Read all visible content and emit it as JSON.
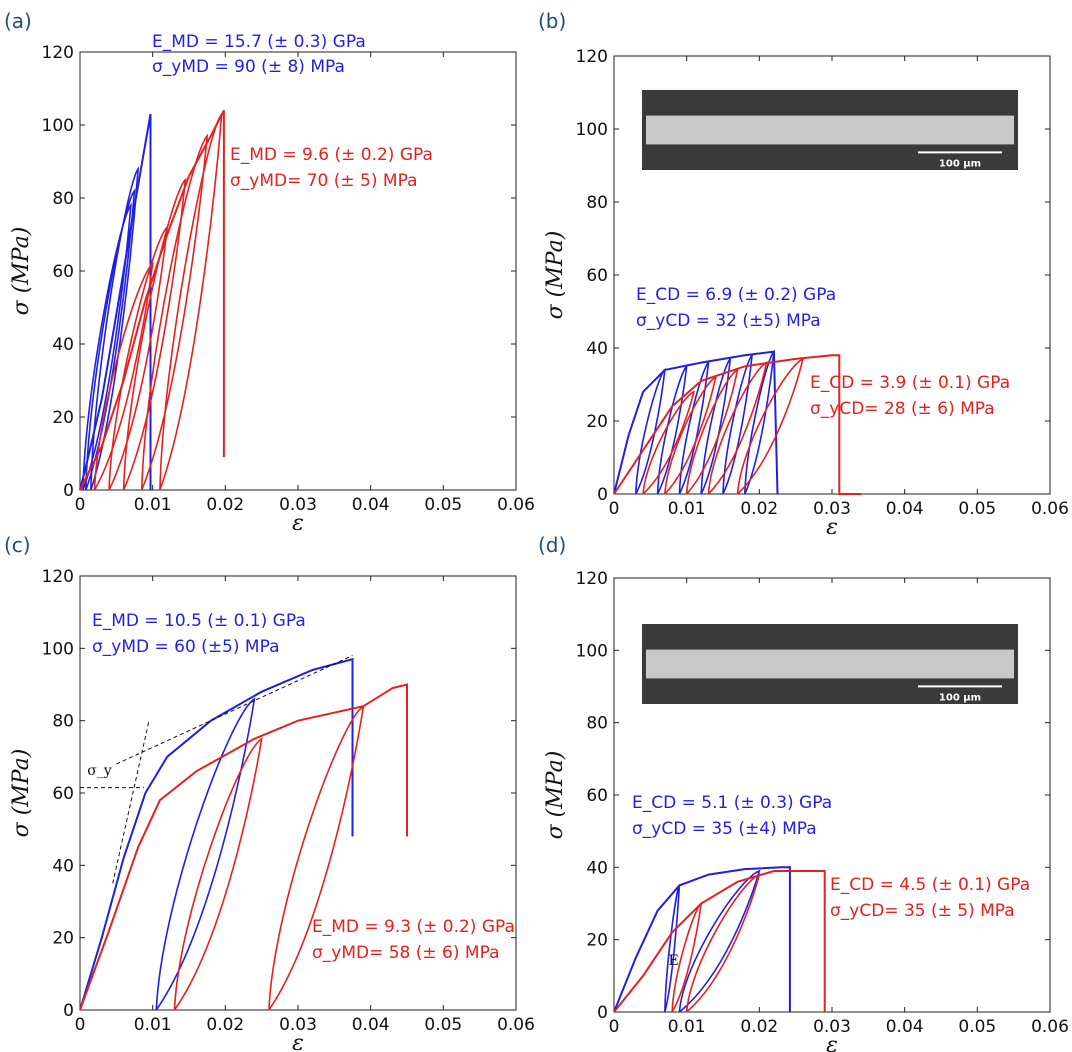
{
  "colors": {
    "blue": "#1f1fe6",
    "red": "#e6201f",
    "label": "#1f4e79"
  },
  "chart_data": [
    {
      "id": "a",
      "panel_label": "(a)",
      "type": "line",
      "xlabel": "ε",
      "ylabel": "σ (MPa)",
      "xlim": [
        0,
        0.06
      ],
      "ylim": [
        0,
        120
      ],
      "xticks": [
        "0",
        "0.01",
        "0.02",
        "0.03",
        "0.04",
        "0.05",
        "0.06"
      ],
      "yticks": [
        "0",
        "20",
        "40",
        "60",
        "80",
        "100",
        "120"
      ],
      "annotations": [
        {
          "text": "E_MD = 15.7 (± 0.3) GPa",
          "color": "blue"
        },
        {
          "text": "σ_yMD = 90 (± 8) MPa",
          "color": "blue"
        },
        {
          "text": "E_MD = 9.6 (± 0.2) GPa",
          "color": "red"
        },
        {
          "text": "σ_yMD= 70 (± 5) MPa",
          "color": "red"
        }
      ],
      "series": [
        {
          "color": "blue",
          "points": [
            [
              0,
              0
            ],
            [
              0.001,
              8
            ],
            [
              0.003,
              25
            ],
            [
              0.005,
              48
            ],
            [
              0.007,
              72
            ],
            [
              0.009,
              95
            ],
            [
              0.0097,
              103
            ],
            [
              0.0097,
              0
            ]
          ],
          "cycles": [
            [
              [
                0.0015,
                0
              ],
              [
                0.008,
                88
              ]
            ],
            [
              [
                0.0008,
                0
              ],
              [
                0.0075,
                82
              ]
            ],
            [
              [
                0.0004,
                0
              ],
              [
                0.007,
                78
              ]
            ]
          ]
        },
        {
          "color": "red",
          "points": [
            [
              0,
              0
            ],
            [
              0.003,
              12
            ],
            [
              0.006,
              30
            ],
            [
              0.009,
              52
            ],
            [
              0.012,
              70
            ],
            [
              0.015,
              86
            ],
            [
              0.018,
              97
            ],
            [
              0.0198,
              104
            ],
            [
              0.0198,
              9
            ]
          ],
          "cycles": [
            [
              [
                0.002,
                0
              ],
              [
                0.01,
                62
              ]
            ],
            [
              [
                0.004,
                0
              ],
              [
                0.012,
                72
              ]
            ],
            [
              [
                0.006,
                0
              ],
              [
                0.0145,
                85
              ]
            ],
            [
              [
                0.0085,
                0
              ],
              [
                0.0175,
                97
              ]
            ],
            [
              [
                0.011,
                0
              ],
              [
                0.0195,
                103
              ]
            ]
          ]
        }
      ]
    },
    {
      "id": "b",
      "panel_label": "(b)",
      "type": "line",
      "xlabel": "ε",
      "ylabel": "σ (MPa)",
      "xlim": [
        0,
        0.06
      ],
      "ylim": [
        0,
        120
      ],
      "xticks": [
        "0",
        "0.01",
        "0.02",
        "0.03",
        "0.04",
        "0.05",
        "0.06"
      ],
      "yticks": [
        "0",
        "20",
        "40",
        "60",
        "80",
        "100",
        "120"
      ],
      "inset": {
        "scale_bar": "100 µm"
      },
      "annotations": [
        {
          "text": "E_CD = 6.9 (± 0.2) GPa",
          "color": "blue"
        },
        {
          "text": "σ_yCD = 32 (±5) MPa",
          "color": "blue"
        },
        {
          "text": "E_CD = 3.9 (± 0.1) GPa",
          "color": "red"
        },
        {
          "text": "σ_yCD= 28 (± 6) MPa",
          "color": "red"
        }
      ],
      "series": [
        {
          "color": "blue",
          "points": [
            [
              0,
              0
            ],
            [
              0.002,
              16
            ],
            [
              0.004,
              28
            ],
            [
              0.007,
              34
            ],
            [
              0.012,
              36
            ],
            [
              0.018,
              38
            ],
            [
              0.022,
              39
            ],
            [
              0.0225,
              0
            ]
          ],
          "cycles": [
            [
              [
                0.003,
                0
              ],
              [
                0.007,
                34
              ]
            ],
            [
              [
                0.006,
                0
              ],
              [
                0.01,
                35
              ]
            ],
            [
              [
                0.009,
                0
              ],
              [
                0.013,
                36
              ]
            ],
            [
              [
                0.012,
                0
              ],
              [
                0.016,
                37
              ]
            ],
            [
              [
                0.015,
                0
              ],
              [
                0.019,
                38
              ]
            ],
            [
              [
                0.018,
                0
              ],
              [
                0.022,
                39
              ]
            ]
          ]
        },
        {
          "color": "red",
          "points": [
            [
              0,
              0
            ],
            [
              0.004,
              12
            ],
            [
              0.008,
              24
            ],
            [
              0.012,
              31
            ],
            [
              0.018,
              35
            ],
            [
              0.025,
              37
            ],
            [
              0.03,
              38
            ],
            [
              0.031,
              38
            ],
            [
              0.031,
              0
            ],
            [
              0.034,
              0
            ]
          ],
          "cycles": [
            [
              [
                0.004,
                0
              ],
              [
                0.011,
                28
              ]
            ],
            [
              [
                0.007,
                0
              ],
              [
                0.014,
                32
              ]
            ],
            [
              [
                0.01,
                0
              ],
              [
                0.017,
                34
              ]
            ],
            [
              [
                0.013,
                0
              ],
              [
                0.021,
                36
              ]
            ],
            [
              [
                0.017,
                0
              ],
              [
                0.026,
                37
              ]
            ]
          ]
        }
      ]
    },
    {
      "id": "c",
      "panel_label": "(c)",
      "type": "line",
      "xlabel": "ε",
      "ylabel": "σ (MPa)",
      "xlim": [
        0,
        0.06
      ],
      "ylim": [
        0,
        120
      ],
      "xticks": [
        "0",
        "0.01",
        "0.02",
        "0.03",
        "0.04",
        "0.05",
        "0.06"
      ],
      "yticks": [
        "0",
        "20",
        "40",
        "60",
        "80",
        "100",
        "120"
      ],
      "sigma_y_label": "σ_y",
      "annotations": [
        {
          "text": "E_MD = 10.5 (± 0.1) GPa",
          "color": "blue"
        },
        {
          "text": "σ_yMD = 60 (±5) MPa",
          "color": "blue"
        },
        {
          "text": "E_MD = 9.3 (± 0.2) GPa",
          "color": "red"
        },
        {
          "text": "σ_yMD= 58 (± 6) MPa",
          "color": "red"
        }
      ],
      "series": [
        {
          "color": "blue",
          "points": [
            [
              0,
              0
            ],
            [
              0.003,
              20
            ],
            [
              0.006,
              42
            ],
            [
              0.009,
              60
            ],
            [
              0.012,
              70
            ],
            [
              0.018,
              80
            ],
            [
              0.025,
              88
            ],
            [
              0.032,
              94
            ],
            [
              0.0375,
              97
            ],
            [
              0.0375,
              48
            ]
          ],
          "cycles": [
            [
              [
                0.0105,
                0
              ],
              [
                0.024,
                86
              ]
            ]
          ]
        },
        {
          "color": "red",
          "points": [
            [
              0,
              0
            ],
            [
              0.004,
              22
            ],
            [
              0.008,
              45
            ],
            [
              0.011,
              58
            ],
            [
              0.016,
              66
            ],
            [
              0.024,
              75
            ],
            [
              0.03,
              80
            ],
            [
              0.039,
              84
            ],
            [
              0.043,
              89
            ],
            [
              0.045,
              90
            ],
            [
              0.045,
              48
            ]
          ],
          "cycles": [
            [
              [
                0.013,
                0
              ],
              [
                0.025,
                75
              ]
            ],
            [
              [
                0.026,
                0
              ],
              [
                0.039,
                84
              ]
            ]
          ]
        }
      ]
    },
    {
      "id": "d",
      "panel_label": "(d)",
      "type": "line",
      "xlabel": "ε",
      "ylabel": "σ (MPa)",
      "xlim": [
        0,
        0.06
      ],
      "ylim": [
        0,
        120
      ],
      "xticks": [
        "0",
        "0.01",
        "0.02",
        "0.03",
        "0.04",
        "0.05",
        "0.06"
      ],
      "yticks": [
        "0",
        "20",
        "40",
        "60",
        "80",
        "100",
        "120"
      ],
      "inset": {
        "scale_bar": "100 µm"
      },
      "e_label": "E",
      "annotations": [
        {
          "text": "E_CD = 5.1 (± 0.3) GPa",
          "color": "blue"
        },
        {
          "text": "σ_yCD = 35 (±4) MPa",
          "color": "blue"
        },
        {
          "text": "E_CD = 4.5 (± 0.1) GPa",
          "color": "red"
        },
        {
          "text": "σ_yCD= 35 (± 5) MPa",
          "color": "red"
        }
      ],
      "series": [
        {
          "color": "blue",
          "points": [
            [
              0,
              0
            ],
            [
              0.003,
              15
            ],
            [
              0.006,
              28
            ],
            [
              0.009,
              35
            ],
            [
              0.013,
              38
            ],
            [
              0.018,
              39.5
            ],
            [
              0.023,
              40
            ],
            [
              0.0242,
              40
            ],
            [
              0.0242,
              0
            ]
          ],
          "cycles": [
            [
              [
                0.007,
                0
              ],
              [
                0.009,
                35
              ]
            ],
            [
              [
                0.009,
                0
              ],
              [
                0.02,
                39
              ]
            ]
          ]
        },
        {
          "color": "red",
          "points": [
            [
              0,
              0
            ],
            [
              0.004,
              10
            ],
            [
              0.008,
              22
            ],
            [
              0.012,
              30
            ],
            [
              0.017,
              36
            ],
            [
              0.022,
              39
            ],
            [
              0.028,
              39
            ],
            [
              0.029,
              39
            ],
            [
              0.029,
              0
            ]
          ],
          "cycles": [
            [
              [
                0.01,
                0
              ],
              [
                0.02,
                38
              ]
            ],
            [
              [
                0.008,
                0
              ],
              [
                0.012,
                30
              ]
            ]
          ]
        }
      ]
    }
  ]
}
